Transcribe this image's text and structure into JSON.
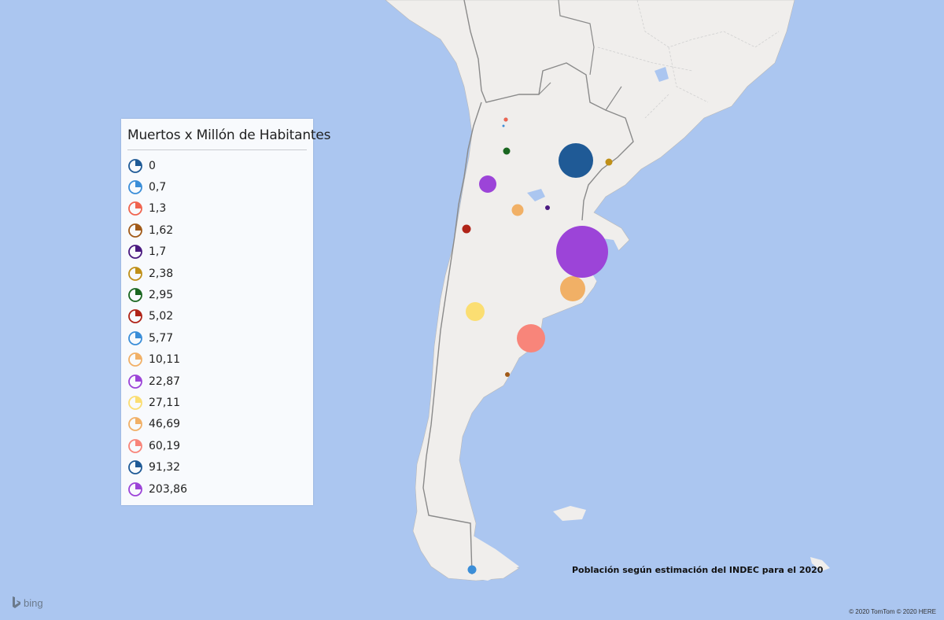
{
  "legend": {
    "title": "Muertos x Millón de Habitantes",
    "items": [
      {
        "label": "0",
        "color": "#1f5a96"
      },
      {
        "label": "0,7",
        "color": "#3b8ed8"
      },
      {
        "label": "1,3",
        "color": "#f0644f"
      },
      {
        "label": "1,62",
        "color": "#a15a18"
      },
      {
        "label": "1,7",
        "color": "#4a1a80"
      },
      {
        "label": "2,38",
        "color": "#c09018"
      },
      {
        "label": "2,95",
        "color": "#1a6620"
      },
      {
        "label": "5,02",
        "color": "#b02418"
      },
      {
        "label": "5,77",
        "color": "#3b8ed8"
      },
      {
        "label": "10,11",
        "color": "#f1b066"
      },
      {
        "label": "22,87",
        "color": "#9c44d8"
      },
      {
        "label": "27,11",
        "color": "#fbde72"
      },
      {
        "label": "46,69",
        "color": "#f1b066"
      },
      {
        "label": "60,19",
        "color": "#f8857a"
      },
      {
        "label": "91,32",
        "color": "#1f5a96"
      },
      {
        "label": "203,86",
        "color": "#9c44d8"
      }
    ]
  },
  "bubbles": [
    {
      "value": "0",
      "color": "#1f5a96"
    },
    {
      "value": "0,7",
      "color": "#3b8ed8"
    },
    {
      "value": "1,3",
      "color": "#f0644f"
    },
    {
      "value": "1,62",
      "color": "#a15a18"
    },
    {
      "value": "1,7",
      "color": "#4a1a80"
    },
    {
      "value": "2,38",
      "color": "#c09018"
    },
    {
      "value": "2,95",
      "color": "#1a6620"
    },
    {
      "value": "5,02",
      "color": "#b02418"
    },
    {
      "value": "5,77",
      "color": "#3b8ed8"
    },
    {
      "value": "10,11",
      "color": "#f1b066"
    },
    {
      "value": "22,87",
      "color": "#9c44d8"
    },
    {
      "value": "27,11",
      "color": "#fbde72"
    },
    {
      "value": "46,69",
      "color": "#f1b066"
    },
    {
      "value": "60,19",
      "color": "#f8857a"
    },
    {
      "value": "91,32",
      "color": "#1f5a96"
    },
    {
      "value": "203,86",
      "color": "#9c44d8"
    }
  ],
  "colors": {
    "water": "#abc6f0",
    "land": "#f0eeec",
    "border": "#8a8a8a",
    "internal_border": "#cfcfcf"
  },
  "note": "Población según estimación del INDEC para el 2020",
  "copyright": "© 2020 TomTom © 2020 HERE",
  "brand": {
    "name": "bing",
    "icon": "bing-logo-icon"
  }
}
